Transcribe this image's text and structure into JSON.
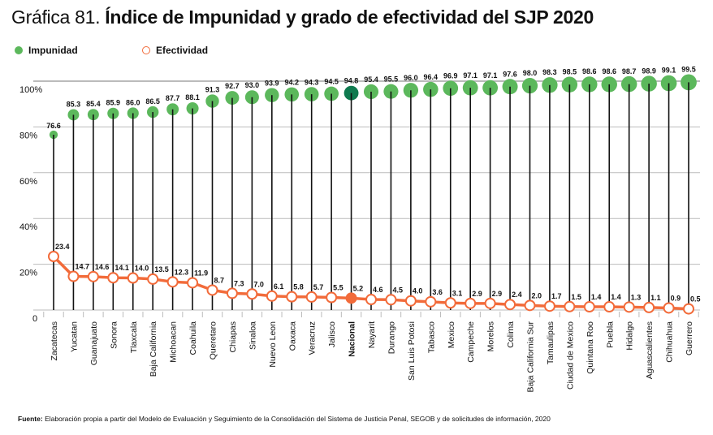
{
  "title": {
    "prefix": "Gráfica 81.",
    "main": "Índice de Impunidad y grado de efectividad del SJP 2020"
  },
  "legend": [
    {
      "label": "Impunidad",
      "color": "#5cb85c",
      "style": "filled"
    },
    {
      "label": "Efectividad",
      "color": "#f26b3a",
      "style": "hollow"
    }
  ],
  "source": {
    "label": "Fuente:",
    "text": "Elaboración propia a partir del Modelo de Evaluación y Seguimiento de la Consolidación del Sistema de Justicia Penal, SEGOB y de solicitudes de información, 2020"
  },
  "colors": {
    "impunidad": "#5cb85c",
    "impunidad_highlight": "#0f7a4f",
    "efectividad": "#f26b3a",
    "grid": "#bbbbbb",
    "stem": "#111111"
  },
  "chart_data": {
    "type": "scatter",
    "title": "Índice de Impunidad y grado de efectividad del SJP 2020",
    "xlabel": "",
    "ylabel": "",
    "ylim": [
      0,
      100
    ],
    "yticks": [
      {
        "value": 0,
        "label": "0"
      },
      {
        "value": 20,
        "label": "20%"
      },
      {
        "value": 40,
        "label": "40%"
      },
      {
        "value": 60,
        "label": "60%"
      },
      {
        "value": 80,
        "label": "80%"
      },
      {
        "value": 100,
        "label": "100%"
      }
    ],
    "grid": true,
    "legend_position": "top-left",
    "highlight_category": "Nacional",
    "categories": [
      "Zacatecas",
      "Yucatan",
      "Guanajuato",
      "Sonora",
      "Tlaxcala",
      "Baja California",
      "Michoacan",
      "Coahuila",
      "Queretaro",
      "Chiapas",
      "Sinaloa",
      "Nuevo Leon",
      "Oaxaca",
      "Veracruz",
      "Jalisco",
      "Nacional",
      "Nayarit",
      "Durango",
      "San Luis Potosi",
      "Tabasco",
      "Mexico",
      "Campeche",
      "Morelos",
      "Colima",
      "Baja California Sur",
      "Tamaulipas",
      "Ciudad de Mexico",
      "Quintana Roo",
      "Puebla",
      "Hidalgo",
      "Aguascalientes",
      "Chihuahua",
      "Guerrero"
    ],
    "series": [
      {
        "name": "Impunidad",
        "values": [
          76.6,
          85.3,
          85.4,
          85.9,
          86.0,
          86.5,
          87.7,
          88.1,
          91.3,
          92.7,
          93.0,
          93.9,
          94.2,
          94.3,
          94.5,
          94.8,
          95.4,
          95.5,
          96.0,
          96.4,
          96.9,
          97.1,
          97.1,
          97.6,
          98.0,
          98.3,
          98.5,
          98.6,
          98.6,
          98.7,
          98.9,
          99.1,
          99.5
        ],
        "labels": [
          "76.6",
          "85.3",
          "85.4",
          "85.9",
          "86.0",
          "86.5",
          "87.7",
          "88.1",
          "91.3",
          "92.7",
          "93.0",
          "93.9",
          "94.2",
          "94.3",
          "94.5",
          "94.8",
          "95.4",
          "95.5",
          "96.0",
          "96.4",
          "96.9",
          "97.1",
          "97.1",
          "97.6",
          "98.0",
          "98.3",
          "98.5",
          "98.6",
          "98.6",
          "98.7",
          "98.9",
          "99.1",
          "99.5"
        ]
      },
      {
        "name": "Efectividad",
        "values": [
          23.4,
          14.7,
          14.6,
          14.1,
          14.0,
          13.5,
          12.3,
          11.9,
          8.7,
          7.3,
          7.0,
          6.1,
          5.8,
          5.7,
          5.5,
          5.2,
          4.6,
          4.5,
          4.0,
          3.6,
          3.1,
          2.9,
          2.9,
          2.4,
          2.0,
          1.7,
          1.5,
          1.4,
          1.4,
          1.3,
          1.1,
          0.9,
          0.5
        ],
        "labels": [
          "23.4",
          "14.7",
          "14.6",
          "14.1",
          "14.0",
          "13.5",
          "12.3",
          "11.9",
          "8.7",
          "7.3",
          "7.0",
          "6.1",
          "5.8",
          "5.7",
          "5.5",
          "5.2",
          "4.6",
          "4.5",
          "4.0",
          "3.6",
          "3.1",
          "2.9",
          "2.9",
          "2.4",
          "2.0",
          "1.7",
          "1.5",
          "1.4",
          "1.4",
          "1.3",
          "1.1",
          "0.9",
          "0.5"
        ]
      }
    ]
  }
}
